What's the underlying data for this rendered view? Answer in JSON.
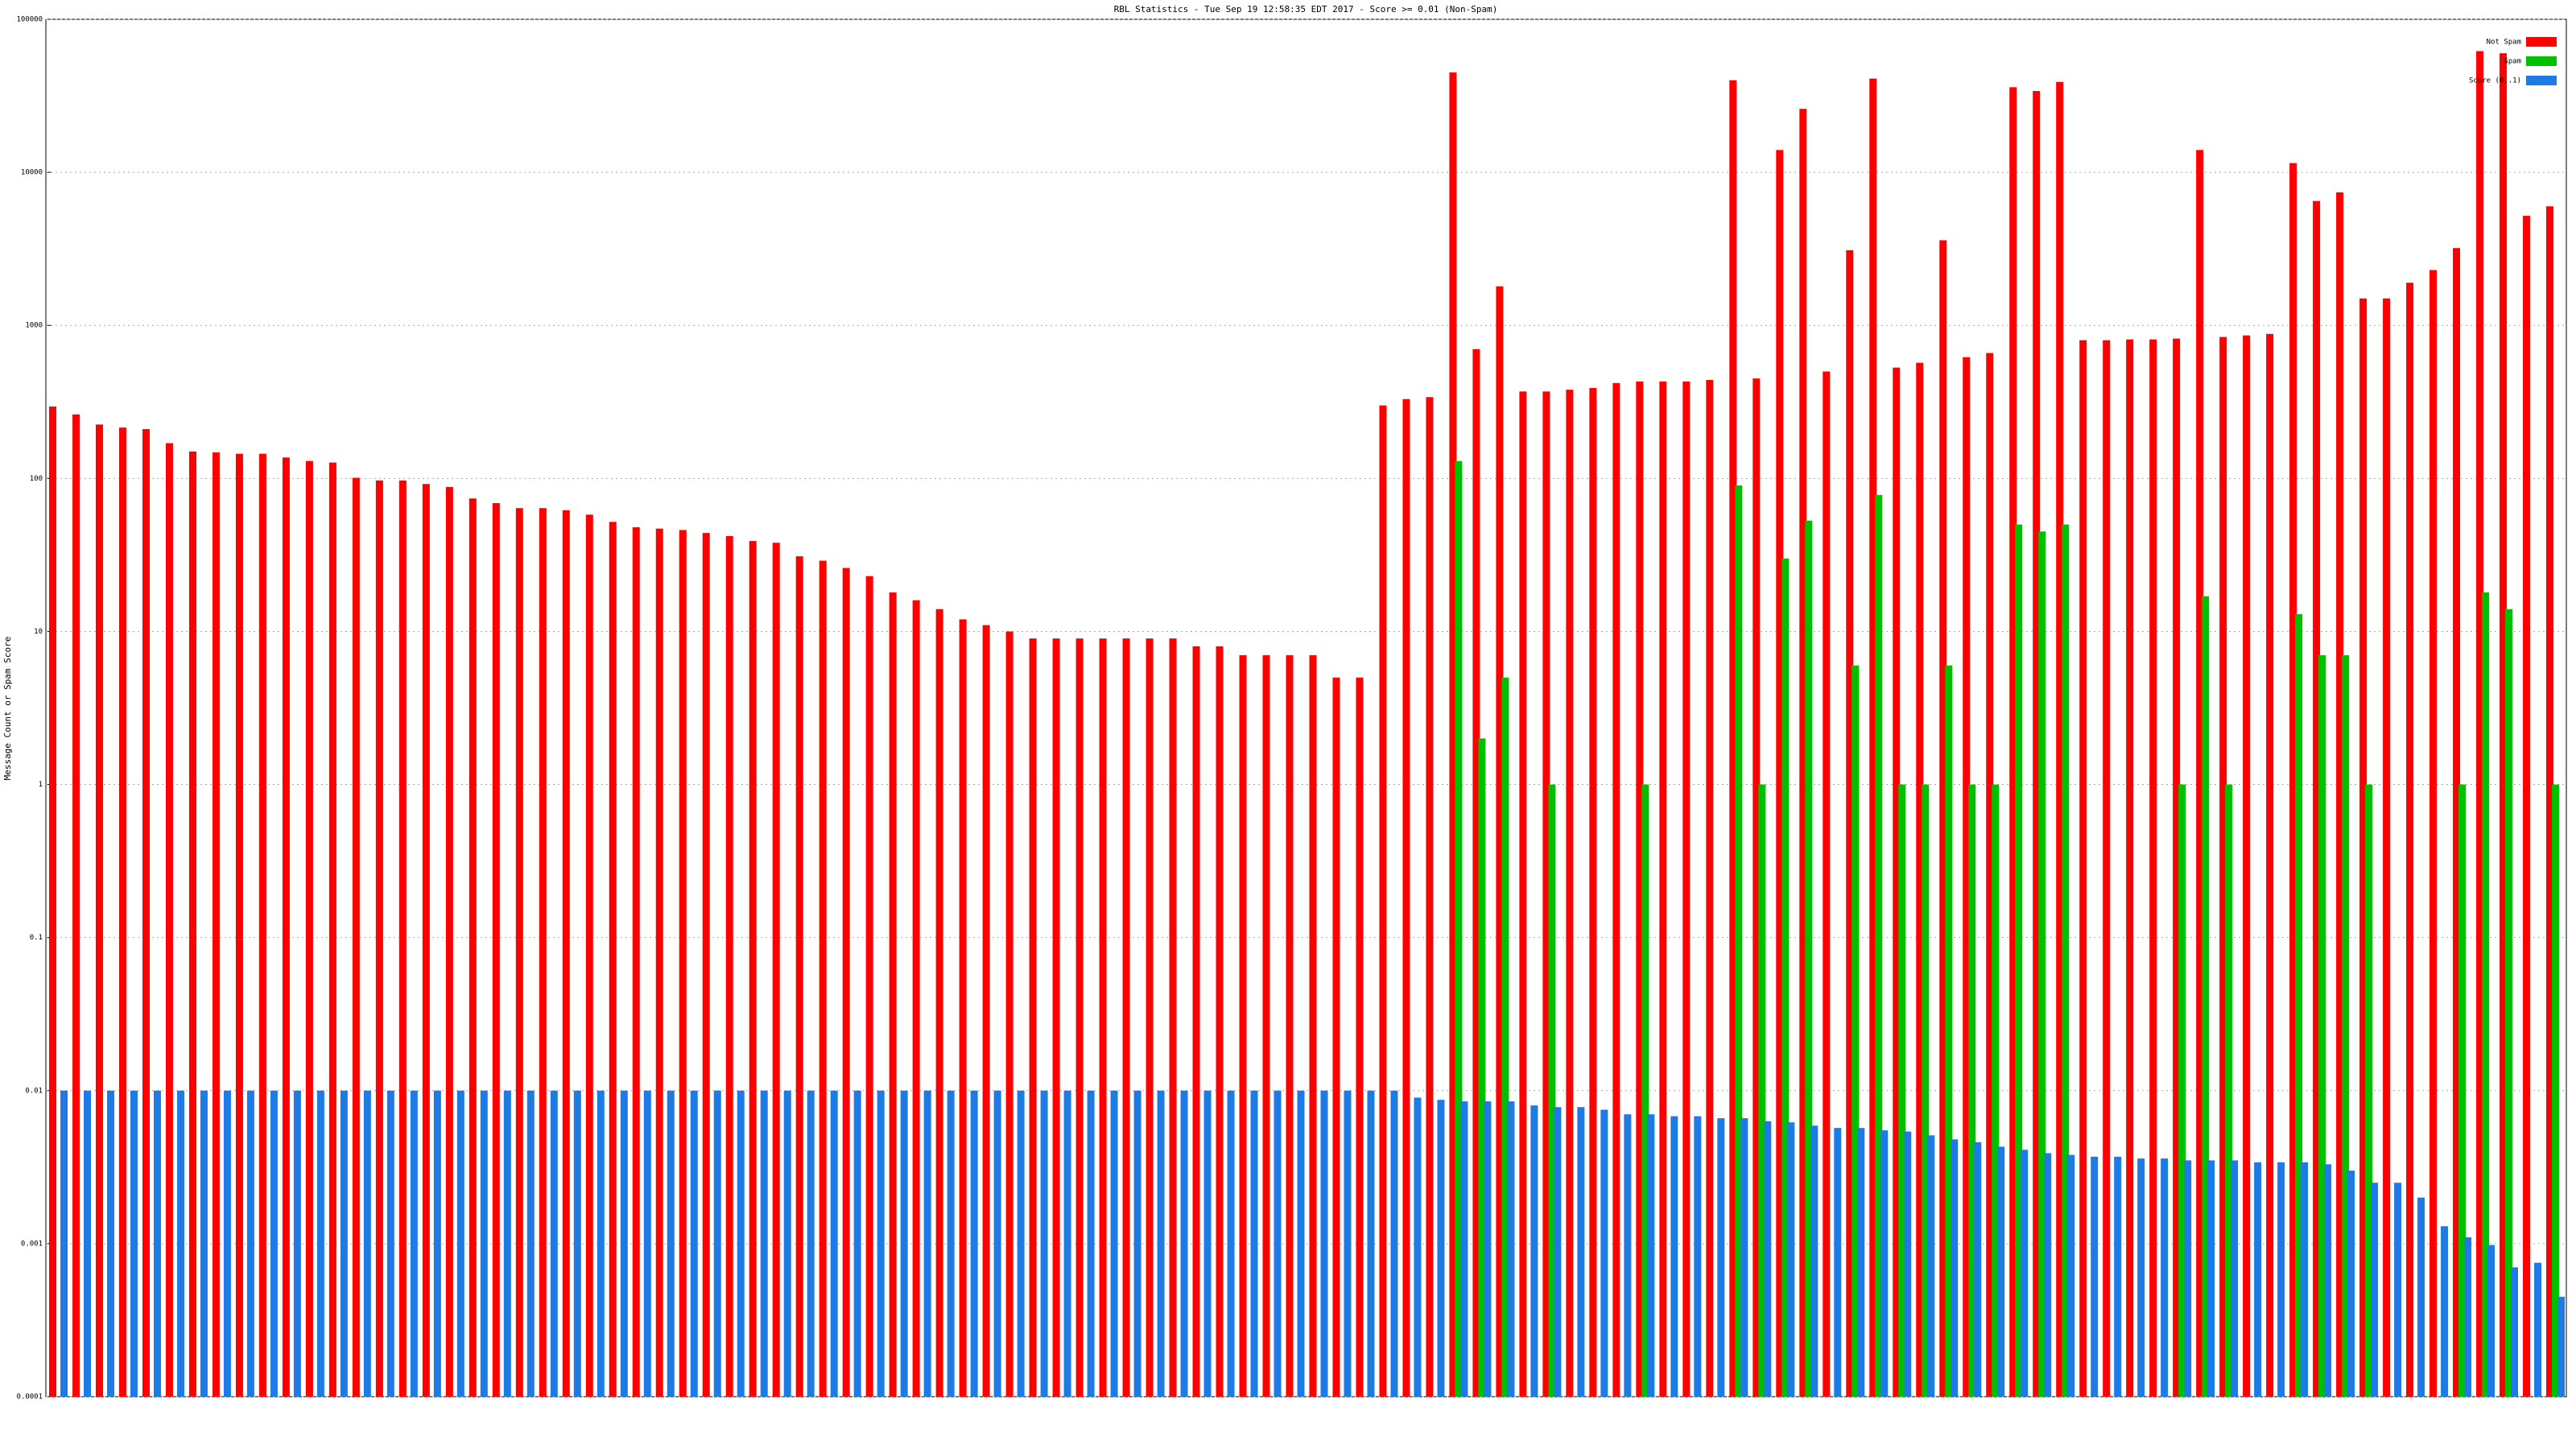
{
  "chart_data": {
    "type": "bar",
    "title": "RBL Statistics - Tue Sep 19 12:58:35 EDT 2017 - Score >= 0.01 (Non-Spam)",
    "y_label": "Message Count or Spam Score",
    "log_scale": true,
    "grid": true,
    "legend_position": "top-right",
    "ylim": [
      0.0001,
      100000
    ],
    "yticks": [
      0.0001,
      0.001,
      0.01,
      0.1,
      1,
      10,
      100,
      1000,
      10000,
      100000
    ],
    "categories": [
      null,
      null,
      null,
      null,
      null,
      null,
      null,
      null,
      null,
      null,
      null,
      null,
      null,
      null,
      null,
      null,
      null,
      null,
      null,
      null,
      null,
      null,
      null,
      null,
      null,
      null,
      null,
      null,
      null,
      null,
      null,
      null,
      null,
      null,
      null,
      null,
      null,
      null,
      null,
      null,
      null,
      null,
      null,
      null,
      null,
      null,
      null,
      null,
      null,
      null,
      null,
      null,
      null,
      null,
      null,
      null,
      null,
      null,
      null,
      null,
      null,
      null,
      null,
      null,
      null,
      null,
      null,
      null,
      null,
      null,
      null,
      null,
      null,
      null,
      null,
      null,
      null,
      null,
      null,
      null,
      null,
      null,
      null,
      null,
      null,
      null,
      null,
      null,
      null,
      null,
      null,
      null,
      null,
      null,
      null,
      null,
      null,
      null,
      null,
      null,
      null,
      null,
      null,
      null,
      null,
      null,
      null,
      null
    ],
    "series": [
      {
        "name": "Not Spam",
        "color": "#ff0000",
        "values": [
          295,
          262,
          225,
          215,
          210,
          170,
          150,
          148,
          145,
          145,
          137,
          130,
          127,
          101,
          97,
          97,
          92,
          88,
          74,
          69,
          64,
          64,
          62,
          58,
          52,
          48,
          47,
          46,
          44,
          42,
          39,
          38,
          31,
          29,
          26,
          23,
          18,
          16,
          14,
          12,
          11,
          10,
          9,
          9,
          9,
          9,
          9,
          9,
          9,
          8,
          8,
          7,
          7,
          7,
          7,
          5,
          5,
          300,
          330,
          340,
          45000,
          700,
          1800,
          370,
          370,
          380,
          390,
          420,
          430,
          430,
          430,
          440,
          40000,
          450,
          14000,
          26000,
          500,
          3100,
          41000,
          530,
          570,
          3600,
          620,
          660,
          36000,
          34000,
          39000,
          800,
          800,
          810,
          810,
          820,
          14000,
          840,
          860,
          880,
          11500,
          6500,
          7400,
          1500,
          1500,
          1900,
          2300,
          3200,
          62000,
          60000,
          5200,
          6000
        ]
      },
      {
        "name": "Spam",
        "color": "#00c000",
        "values": [
          null,
          null,
          null,
          null,
          null,
          null,
          null,
          null,
          null,
          null,
          null,
          null,
          null,
          null,
          null,
          null,
          null,
          null,
          null,
          null,
          null,
          null,
          null,
          null,
          null,
          null,
          null,
          null,
          null,
          null,
          null,
          null,
          null,
          null,
          null,
          null,
          null,
          null,
          null,
          null,
          null,
          null,
          null,
          null,
          null,
          null,
          null,
          null,
          null,
          null,
          null,
          null,
          null,
          null,
          null,
          null,
          null,
          null,
          null,
          null,
          130,
          2,
          5,
          null,
          1,
          null,
          null,
          null,
          1,
          null,
          null,
          null,
          90,
          1,
          30,
          53,
          null,
          6,
          78,
          1,
          1,
          6,
          1,
          1,
          50,
          45,
          50,
          null,
          null,
          null,
          null,
          1,
          17,
          1,
          null,
          null,
          13,
          7,
          7,
          1,
          null,
          null,
          null,
          1,
          18,
          14,
          null,
          1
        ]
      },
      {
        "name": "Score (0..1)",
        "color": "#1e7be6",
        "values": [
          0.01,
          0.01,
          0.01,
          0.01,
          0.01,
          0.01,
          0.01,
          0.01,
          0.01,
          0.01,
          0.01,
          0.01,
          0.01,
          0.01,
          0.01,
          0.01,
          0.01,
          0.01,
          0.01,
          0.01,
          0.01,
          0.01,
          0.01,
          0.01,
          0.01,
          0.01,
          0.01,
          0.01,
          0.01,
          0.01,
          0.01,
          0.01,
          0.01,
          0.01,
          0.01,
          0.01,
          0.01,
          0.01,
          0.01,
          0.01,
          0.01,
          0.01,
          0.01,
          0.01,
          0.01,
          0.01,
          0.01,
          0.01,
          0.01,
          0.01,
          0.01,
          0.01,
          0.01,
          0.01,
          0.01,
          0.01,
          0.01,
          0.01,
          0.009,
          0.0087,
          0.0085,
          0.0085,
          0.0085,
          0.008,
          0.0078,
          0.0078,
          0.0075,
          0.007,
          0.007,
          0.0068,
          0.0068,
          0.0066,
          0.0066,
          0.0063,
          0.0062,
          0.0059,
          0.0057,
          0.0057,
          0.0055,
          0.0054,
          0.0051,
          0.0048,
          0.0046,
          0.0043,
          0.0041,
          0.0039,
          0.0038,
          0.0037,
          0.0037,
          0.0036,
          0.0036,
          0.0035,
          0.0035,
          0.0035,
          0.0034,
          0.0034,
          0.0034,
          0.0033,
          0.003,
          0.0025,
          0.0025,
          0.002,
          0.0013,
          0.0011,
          0.00098,
          0.0007,
          0.00075,
          0.00045
        ]
      }
    ]
  }
}
